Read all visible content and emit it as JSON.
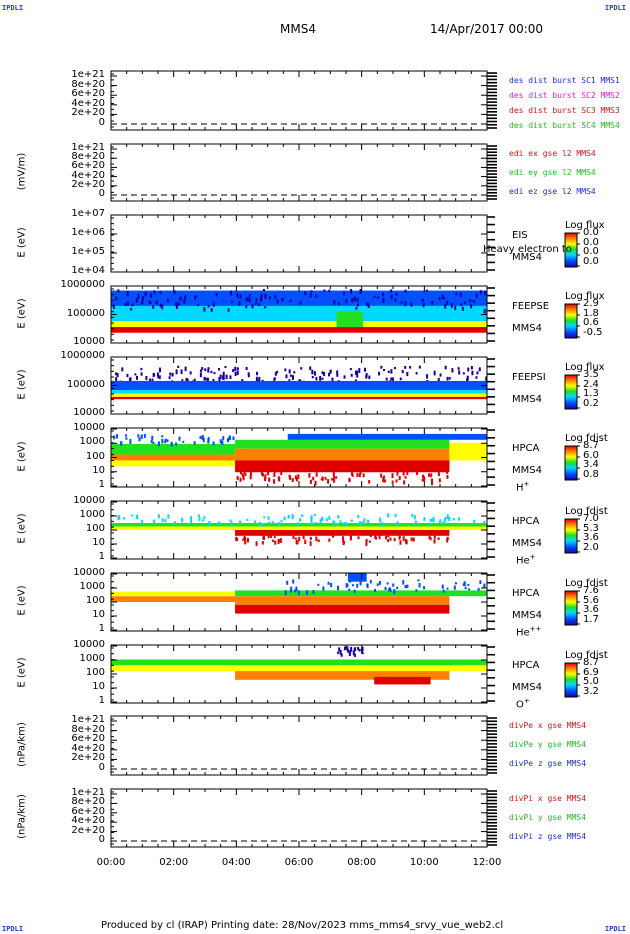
{
  "corner_labels": {
    "tl": "IPDLI",
    "tr": "IPDLI",
    "bl": "IPDLI",
    "br": "IPDLI"
  },
  "header": {
    "spacecraft": "MMS4",
    "date": "14/Apr/2017 00:00"
  },
  "footer": "Produced by cl (IRAP)   Printing date: 28/Nov/2023   mms_mms4_srvy_vue_web2.cl",
  "colors": {
    "blue": "#1f2fcf",
    "magenta": "#e020d0",
    "red": "#d01818",
    "green": "#22bb22"
  },
  "chart_data": {
    "type": "heatmap",
    "x_ticks": [
      "00:00",
      "02:00",
      "04:00",
      "06:00",
      "08:00",
      "10:00",
      "12:00"
    ],
    "x_range_hours": [
      0,
      12
    ],
    "panels": [
      {
        "id": "p1",
        "ylabel": "",
        "ticks": [
          "1e+21",
          "8e+20",
          "6e+20",
          "4e+20",
          "2e+20",
          "0"
        ],
        "legend": [
          {
            "text": "des dist burst SC1 MMS1",
            "color": "#1f2fcf"
          },
          {
            "text": "des dist burst SC2 MMS2",
            "color": "#e020d0"
          },
          {
            "text": "des dist burst SC3 MMS3",
            "color": "#d01818"
          },
          {
            "text": "des dist burst SC4 MMS4",
            "color": "#22bb22"
          }
        ]
      },
      {
        "id": "p2",
        "ylabel": "(mV/m)",
        "ticks": [
          "1e+21",
          "8e+20",
          "6e+20",
          "4e+20",
          "2e+20",
          "0"
        ],
        "legend": [
          {
            "text": "edi ex gse l2 MMS4",
            "color": "#d01818"
          },
          {
            "text": "edi ey gse l2 MMS4",
            "color": "#22bb22"
          },
          {
            "text": "edi ez gse l2 MMS4",
            "color": "#1f2fcf"
          }
        ]
      },
      {
        "id": "p3",
        "ylabel": "E (eV)",
        "ticks": [
          "1e+07",
          "1e+06",
          "1e+05",
          "1e+04"
        ],
        "instrument": [
          "EIS",
          "MMS4"
        ],
        "overlay": "Heavy electron to",
        "cbar": {
          "title": "Log flux",
          "values": [
            "0.0",
            "0.0",
            "0.0",
            "0.0"
          ]
        }
      },
      {
        "id": "p4",
        "ylabel": "E (eV)",
        "ticks": [
          "1000000",
          "100000",
          "10000"
        ],
        "instrument": [
          "FEEPSE",
          "MMS4"
        ],
        "cbar": {
          "title": "Log flux",
          "values": [
            "2.9",
            "1.8",
            "0.6",
            "-0.5"
          ]
        }
      },
      {
        "id": "p5",
        "ylabel": "E (eV)",
        "ticks": [
          "1000000",
          "100000",
          "10000"
        ],
        "instrument": [
          "FEEPSI",
          "MMS4"
        ],
        "cbar": {
          "title": "Log flux",
          "values": [
            "3.5",
            "2.4",
            "1.3",
            "0.2"
          ]
        }
      },
      {
        "id": "p6",
        "ylabel": "E (eV)",
        "ticks": [
          "10000",
          "1000",
          "100",
          "10",
          "1"
        ],
        "instrument": [
          "HPCA",
          "MMS4"
        ],
        "species": "H",
        "charge": "+",
        "cbar": {
          "title": "Log fdist",
          "values": [
            "8.7",
            "6.0",
            "3.4",
            "0.8"
          ]
        }
      },
      {
        "id": "p7",
        "ylabel": "E (eV)",
        "ticks": [
          "10000",
          "1000",
          "100",
          "10",
          "1"
        ],
        "instrument": [
          "HPCA",
          "MMS4"
        ],
        "species": "He",
        "charge": "+",
        "cbar": {
          "title": "Log fdist",
          "values": [
            "7.0",
            "5.3",
            "3.6",
            "2.0"
          ]
        }
      },
      {
        "id": "p8",
        "ylabel": "E (eV)",
        "ticks": [
          "10000",
          "1000",
          "100",
          "10",
          "1"
        ],
        "instrument": [
          "HPCA",
          "MMS4"
        ],
        "species": "He",
        "charge": "++",
        "cbar": {
          "title": "Log fdist",
          "values": [
            "7.6",
            "5.6",
            "3.6",
            "1.7"
          ]
        }
      },
      {
        "id": "p9",
        "ylabel": "E (eV)",
        "ticks": [
          "10000",
          "1000",
          "100",
          "10",
          "1"
        ],
        "instrument": [
          "HPCA",
          "MMS4"
        ],
        "species": "O",
        "charge": "+",
        "cbar": {
          "title": "Log fdist",
          "values": [
            "8.7",
            "6.9",
            "5.0",
            "3.2"
          ]
        }
      },
      {
        "id": "p10",
        "ylabel": "(nPa/km)",
        "ticks": [
          "1e+21",
          "8e+20",
          "6e+20",
          "4e+20",
          "2e+20",
          "0"
        ],
        "legend": [
          {
            "text": "divPe x gse MMS4",
            "color": "#d01818"
          },
          {
            "text": "divPe y gse MMS4",
            "color": "#22bb22"
          },
          {
            "text": "divPe z gse MMS4",
            "color": "#1f2fcf"
          }
        ]
      },
      {
        "id": "p11",
        "ylabel": "(nPa/km)",
        "ticks": [
          "1e+21",
          "8e+20",
          "6e+20",
          "4e+20",
          "2e+20",
          "0"
        ],
        "legend": [
          {
            "text": "divPi x gse MMS4",
            "color": "#d01818"
          },
          {
            "text": "divPi y gse MMS4",
            "color": "#22bb22"
          },
          {
            "text": "divPi z gse MMS4",
            "color": "#1f2fcf"
          }
        ]
      }
    ]
  }
}
